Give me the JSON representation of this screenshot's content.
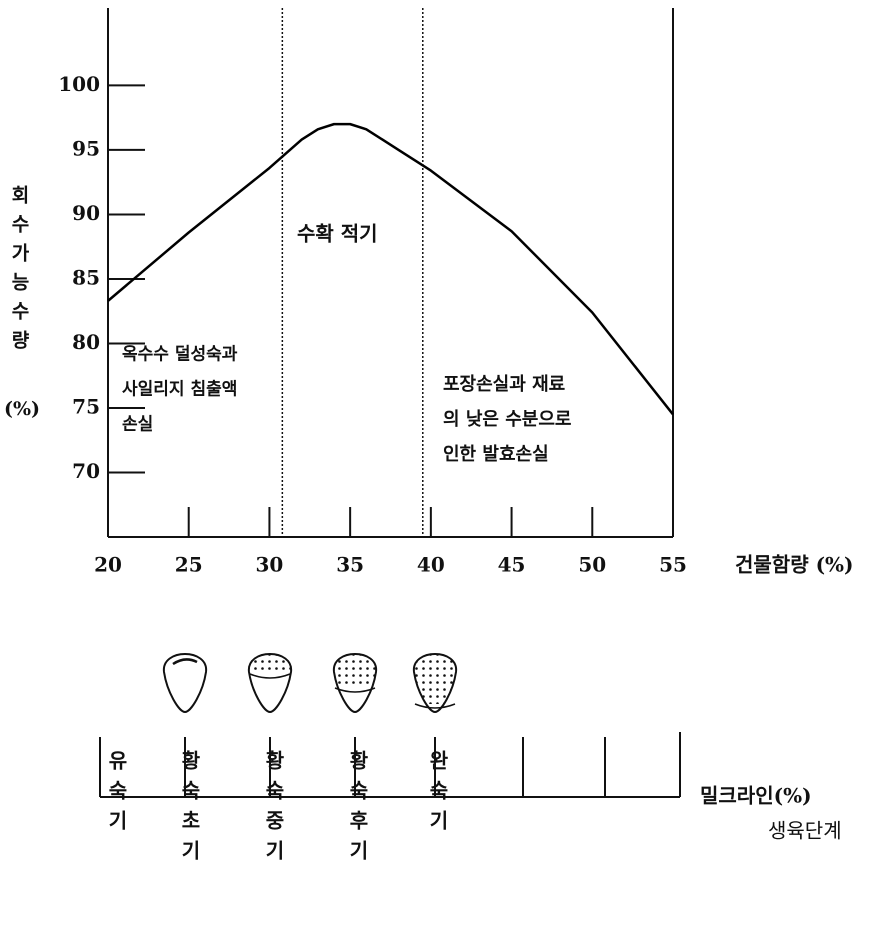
{
  "chart_data": {
    "type": "line",
    "x": [
      20,
      25,
      30,
      32,
      33,
      34,
      35,
      36,
      37,
      38,
      40,
      45,
      50,
      55
    ],
    "series": [
      {
        "color": "#000000",
        "values": [
          83.3,
          88.6,
          93.6,
          95.8,
          96.6,
          97.0,
          97.0,
          96.6,
          95.8,
          95.0,
          93.4,
          88.7,
          82.4,
          74.5
        ]
      }
    ],
    "xlim": [
      20,
      55
    ],
    "xticks": [
      20,
      25,
      30,
      35,
      40,
      45,
      50,
      55
    ],
    "ylim": [
      65,
      106
    ],
    "yticks": [
      70,
      75,
      80,
      85,
      90,
      95,
      100
    ],
    "reference_lines_x": [
      30.8,
      39.5
    ],
    "y_label": "회수가능수량",
    "y_label_unit": "(%)",
    "x_label": "건물함량 (%)",
    "annotations": [
      {
        "lines": [
          "수확 적기"
        ]
      },
      {
        "lines": [
          "옥수수 덜성숙과",
          "사일리지 침출액",
          "손실"
        ]
      },
      {
        "lines": [
          "포장손실과 재료",
          "의 낮은 수분으로",
          "인한 발효손실"
        ]
      }
    ]
  },
  "diagram": {
    "milk_line_label": "밀크라인(%)",
    "stage_label": "생육단계",
    "stages": [
      "유숙기",
      "황숙초기",
      "황숙중기",
      "황숙후기",
      "완숙기"
    ]
  }
}
